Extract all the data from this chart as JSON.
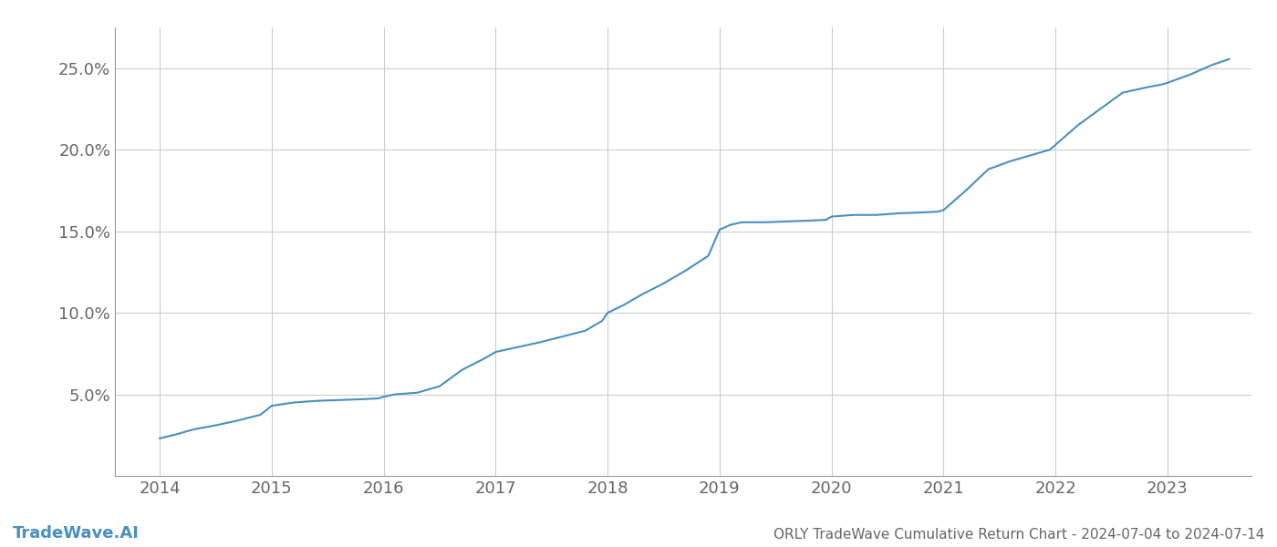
{
  "title": "ORLY TradeWave Cumulative Return Chart - 2024-07-04 to 2024-07-14",
  "watermark": "TradeWave.AI",
  "line_color": "#4a8fc0",
  "background_color": "#ffffff",
  "grid_color": "#cccccc",
  "x_values": [
    2014.0,
    2014.15,
    2014.3,
    2014.5,
    2014.7,
    2014.9,
    2015.0,
    2015.2,
    2015.4,
    2015.6,
    2015.8,
    2015.95,
    2016.0,
    2016.1,
    2016.3,
    2016.5,
    2016.7,
    2016.9,
    2017.0,
    2017.2,
    2017.4,
    2017.6,
    2017.8,
    2017.95,
    2018.0,
    2018.15,
    2018.3,
    2018.5,
    2018.7,
    2018.9,
    2019.0,
    2019.1,
    2019.2,
    2019.4,
    2019.6,
    2019.8,
    2019.95,
    2020.0,
    2020.2,
    2020.4,
    2020.6,
    2020.8,
    2020.95,
    2021.0,
    2021.2,
    2021.4,
    2021.6,
    2021.8,
    2021.95,
    2022.0,
    2022.2,
    2022.4,
    2022.6,
    2022.8,
    2022.95,
    2023.0,
    2023.2,
    2023.4,
    2023.55
  ],
  "y_values": [
    2.3,
    2.55,
    2.85,
    3.1,
    3.4,
    3.75,
    4.3,
    4.5,
    4.6,
    4.65,
    4.7,
    4.75,
    4.85,
    5.0,
    5.1,
    5.5,
    6.5,
    7.2,
    7.6,
    7.9,
    8.2,
    8.55,
    8.9,
    9.5,
    10.0,
    10.5,
    11.1,
    11.8,
    12.6,
    13.5,
    15.1,
    15.4,
    15.55,
    15.55,
    15.6,
    15.65,
    15.7,
    15.9,
    16.0,
    16.0,
    16.1,
    16.15,
    16.2,
    16.3,
    17.5,
    18.8,
    19.3,
    19.7,
    20.0,
    20.3,
    21.5,
    22.5,
    23.5,
    23.8,
    24.0,
    24.1,
    24.6,
    25.2,
    25.55
  ],
  "ylim": [
    0,
    27.5
  ],
  "xlim": [
    2013.6,
    2023.75
  ],
  "yticks": [
    5.0,
    10.0,
    15.0,
    20.0,
    25.0
  ],
  "xticks": [
    2014,
    2015,
    2016,
    2017,
    2018,
    2019,
    2020,
    2021,
    2022,
    2023
  ],
  "line_width": 1.5,
  "title_fontsize": 11,
  "tick_fontsize": 13,
  "watermark_fontsize": 13,
  "spine_color": "#999999"
}
